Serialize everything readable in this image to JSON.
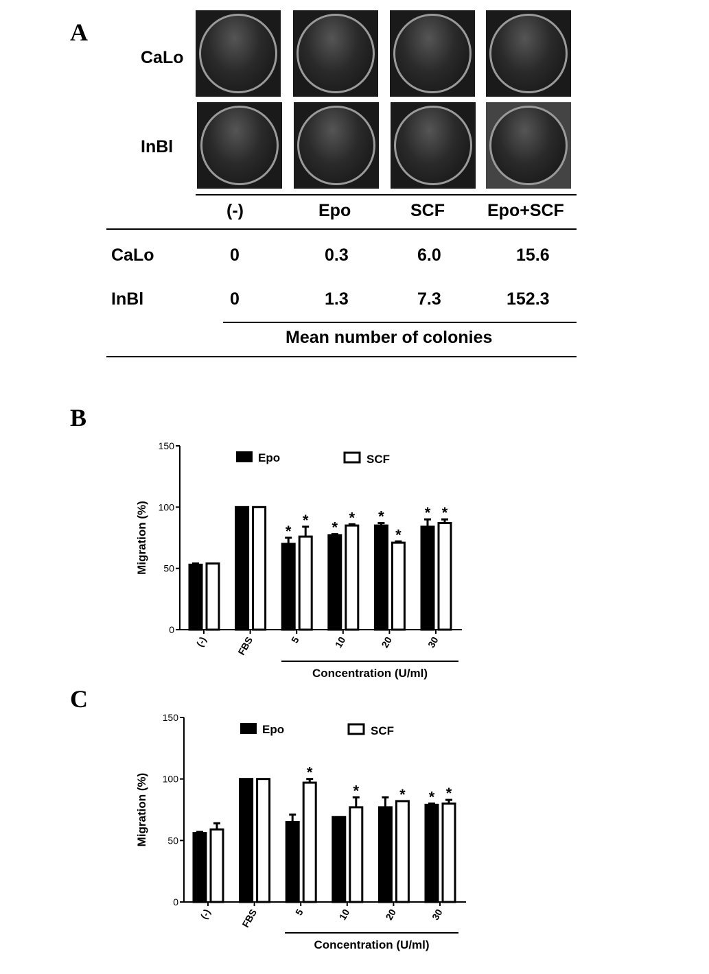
{
  "panels": {
    "a": "A",
    "b": "B",
    "c": "C"
  },
  "panel_a": {
    "row_labels": [
      "CaLo",
      "InBl"
    ],
    "columns": [
      "(-)",
      "Epo",
      "SCF",
      "Epo+SCF"
    ],
    "table_rows": [
      {
        "label": "CaLo",
        "values": [
          "0",
          "0.3",
          "6.0",
          "15.6"
        ]
      },
      {
        "label": "InBl",
        "values": [
          "0",
          "1.3",
          "7.3",
          "152.3"
        ]
      }
    ],
    "footer": "Mean number of colonies"
  },
  "chart_data": [
    {
      "type": "bar",
      "panel": "B",
      "ylabel": "Migration (%)",
      "xlabel": "Concentration (U/ml)",
      "ylim": [
        0,
        150
      ],
      "yticks": [
        0,
        50,
        100,
        150
      ],
      "categories": [
        "(-)",
        "FBS",
        "5",
        "10",
        "20",
        "30"
      ],
      "legend": {
        "placement": "top",
        "entries": [
          "Epo",
          "SCF"
        ]
      },
      "series": [
        {
          "name": "Epo",
          "color": "#000000",
          "values": [
            53,
            100,
            70,
            77,
            85,
            84
          ],
          "errors": [
            1,
            0,
            5,
            1,
            2,
            6
          ],
          "significant": [
            false,
            false,
            true,
            true,
            true,
            true
          ]
        },
        {
          "name": "SCF",
          "color": "#ffffff",
          "values": [
            54,
            100,
            76,
            85,
            71,
            87
          ],
          "errors": [
            0,
            0,
            8,
            1,
            1,
            3
          ],
          "significant": [
            false,
            false,
            true,
            true,
            true,
            true
          ]
        }
      ]
    },
    {
      "type": "bar",
      "panel": "C",
      "ylabel": "Migration (%)",
      "xlabel": "Concentration (U/ml)",
      "ylim": [
        0,
        150
      ],
      "yticks": [
        0,
        50,
        100,
        150
      ],
      "categories": [
        "(-)",
        "FBS",
        "5",
        "10",
        "20",
        "30"
      ],
      "legend": {
        "placement": "top",
        "entries": [
          "Epo",
          "SCF"
        ]
      },
      "series": [
        {
          "name": "Epo",
          "color": "#000000",
          "values": [
            56,
            100,
            65,
            69,
            77,
            79
          ],
          "errors": [
            1,
            0,
            6,
            0,
            8,
            1
          ],
          "significant": [
            false,
            false,
            false,
            false,
            false,
            true
          ]
        },
        {
          "name": "SCF",
          "color": "#ffffff",
          "values": [
            59,
            100,
            97,
            77,
            82,
            80
          ],
          "errors": [
            5,
            0,
            3,
            8,
            0,
            3
          ],
          "significant": [
            false,
            false,
            true,
            true,
            true,
            true
          ]
        }
      ]
    }
  ]
}
